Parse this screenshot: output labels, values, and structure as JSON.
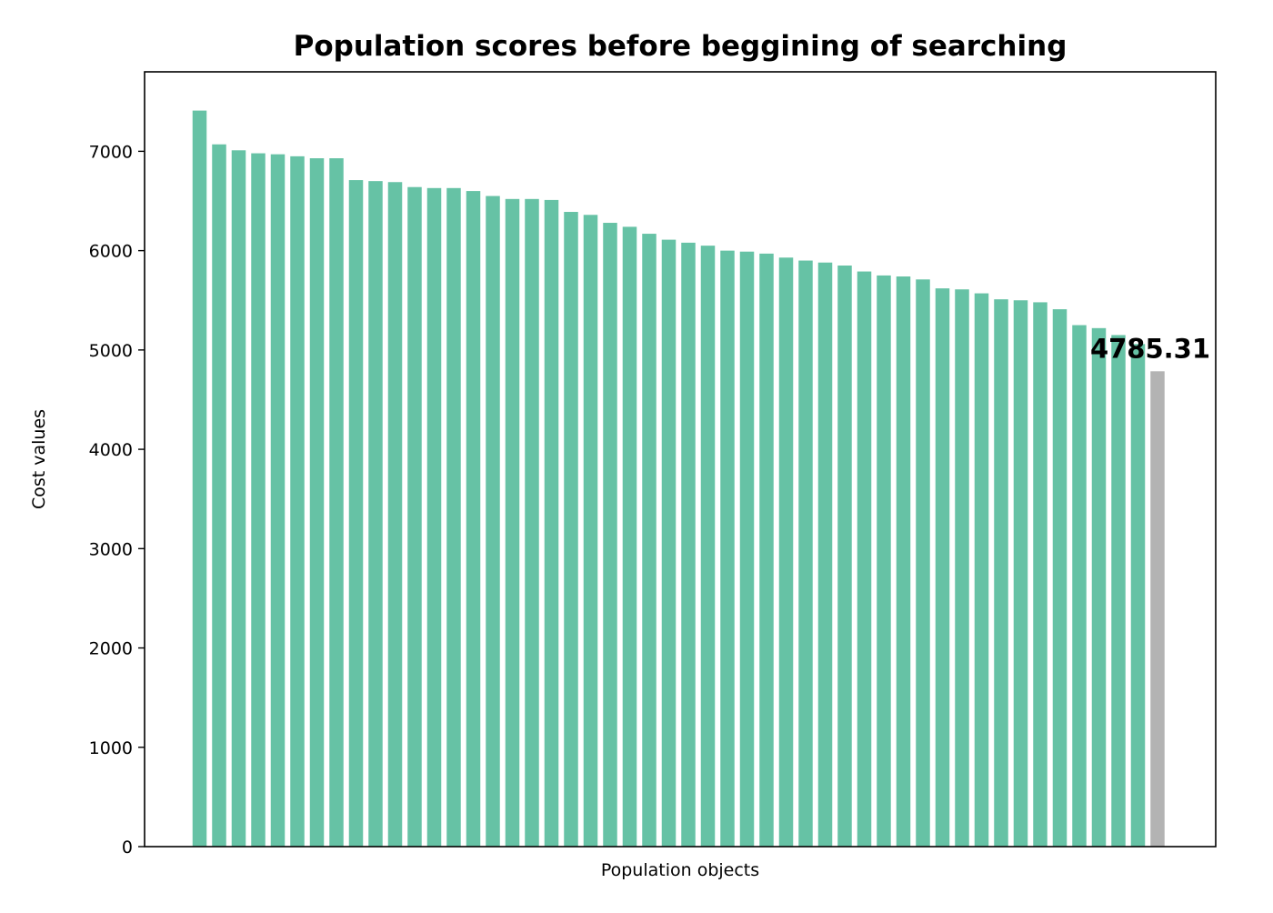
{
  "chart_data": {
    "type": "bar",
    "title": "Population scores before beggining of searching",
    "xlabel": "Population objects",
    "ylabel": "Cost values",
    "ylim": [
      0,
      7800
    ],
    "yticks": [
      0,
      1000,
      2000,
      3000,
      4000,
      5000,
      6000,
      7000
    ],
    "grid": false,
    "legend": null,
    "values": [
      7410,
      7070,
      7010,
      6980,
      6970,
      6950,
      6930,
      6930,
      6710,
      6700,
      6690,
      6640,
      6630,
      6630,
      6600,
      6550,
      6520,
      6520,
      6510,
      6390,
      6360,
      6280,
      6240,
      6170,
      6110,
      6080,
      6050,
      6000,
      5990,
      5970,
      5930,
      5900,
      5880,
      5850,
      5790,
      5750,
      5740,
      5710,
      5620,
      5610,
      5570,
      5510,
      5500,
      5480,
      5410,
      5250,
      5220,
      5150,
      5060,
      4785.31
    ],
    "bar_color": "#66c2a5",
    "highlight_color": "#b3b3b3",
    "highlight_index": 49,
    "annotation": {
      "index": 49,
      "text": "4785.31"
    }
  }
}
